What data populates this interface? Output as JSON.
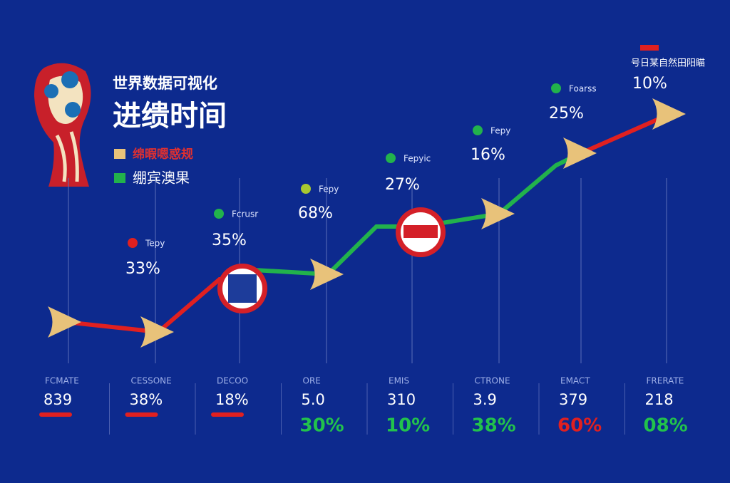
{
  "header": {
    "subtitle": "世界数据可视化",
    "title": "进缋时间"
  },
  "legend": [
    {
      "label": "绵暇嗯惑规"
    },
    {
      "label": "绷宾澳果"
    }
  ],
  "corner": {
    "label": "号日某自然田阳瞄",
    "value": "10%"
  },
  "points": [
    {
      "label": "Tepy",
      "value": "33%"
    },
    {
      "label": "Fcrusr",
      "value": "35%"
    },
    {
      "label": "Fepy",
      "value": "68%"
    },
    {
      "label": "Fepyic",
      "value": "27%"
    },
    {
      "label": "Fepy",
      "value": "16%"
    },
    {
      "label": "Foarss",
      "value": "25%"
    }
  ],
  "columns": [
    {
      "label": "FCMATE",
      "value": "839"
    },
    {
      "label": "CESSONE",
      "value": "38%"
    },
    {
      "label": "DECOO",
      "value": "18%"
    },
    {
      "label": "ORE",
      "value": "5.0",
      "change": "30%"
    },
    {
      "label": "EMIS",
      "value": "310",
      "change": "10%"
    },
    {
      "label": "CTRONE",
      "value": "3.9",
      "change": "38%"
    },
    {
      "label": "EMACT",
      "value": "379",
      "change": "60%"
    },
    {
      "label": "FRERATE",
      "value": "218",
      "change": "08%"
    }
  ]
}
